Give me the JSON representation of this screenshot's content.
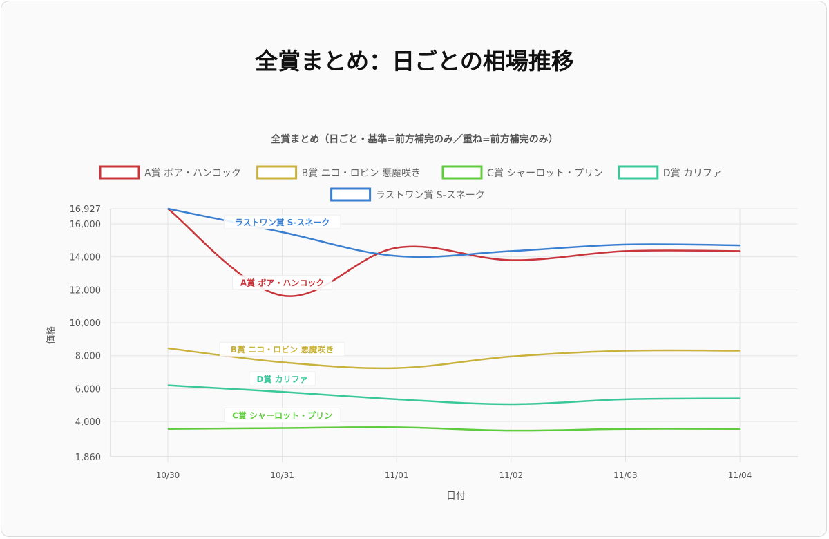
{
  "page": {
    "title": "全賞まとめ：日ごとの相場推移"
  },
  "chart_data": {
    "type": "line",
    "title": "全賞まとめ（日ごと・基準=前方補完のみ／重ね=前方補完のみ）",
    "xlabel": "日付",
    "ylabel": "価格",
    "categories": [
      "10/30",
      "10/31",
      "11/01",
      "11/02",
      "11/03",
      "11/04"
    ],
    "ylim": [
      1860,
      16927
    ],
    "yticks": [
      {
        "value": 1860,
        "label": "1,860"
      },
      {
        "value": 4000,
        "label": "4,000"
      },
      {
        "value": 6000,
        "label": "6,000"
      },
      {
        "value": 8000,
        "label": "8,000"
      },
      {
        "value": 10000,
        "label": "10,000"
      },
      {
        "value": 12000,
        "label": "12,000"
      },
      {
        "value": 14000,
        "label": "14,000"
      },
      {
        "value": 16000,
        "label": "16,000"
      },
      {
        "value": 16927,
        "label": "16,927"
      }
    ],
    "grid": true,
    "legend_position": "top",
    "series": [
      {
        "name": "A賞 ボア・ハンコック",
        "color": "#c8353a",
        "values": [
          16927,
          11650,
          14550,
          13800,
          14350,
          14350
        ],
        "label_index": 1
      },
      {
        "name": "B賞 ニコ・ロビン 悪魔咲き",
        "color": "#c9b23b",
        "values": [
          8450,
          7600,
          7250,
          7950,
          8300,
          8300
        ],
        "label_index": 1
      },
      {
        "name": "C賞 シャーロット・プリン",
        "color": "#5fcb3d",
        "values": [
          3550,
          3600,
          3650,
          3450,
          3550,
          3550
        ],
        "label_index": 1
      },
      {
        "name": "D賞 カリファ",
        "color": "#3ac79a",
        "values": [
          6200,
          5800,
          5350,
          5050,
          5350,
          5400
        ],
        "label_index": 1
      },
      {
        "name": "ラストワン賞 S-スネーク",
        "color": "#3b7fd1",
        "values": [
          16927,
          15500,
          14050,
          14350,
          14750,
          14700
        ],
        "label_index": 1
      }
    ]
  }
}
